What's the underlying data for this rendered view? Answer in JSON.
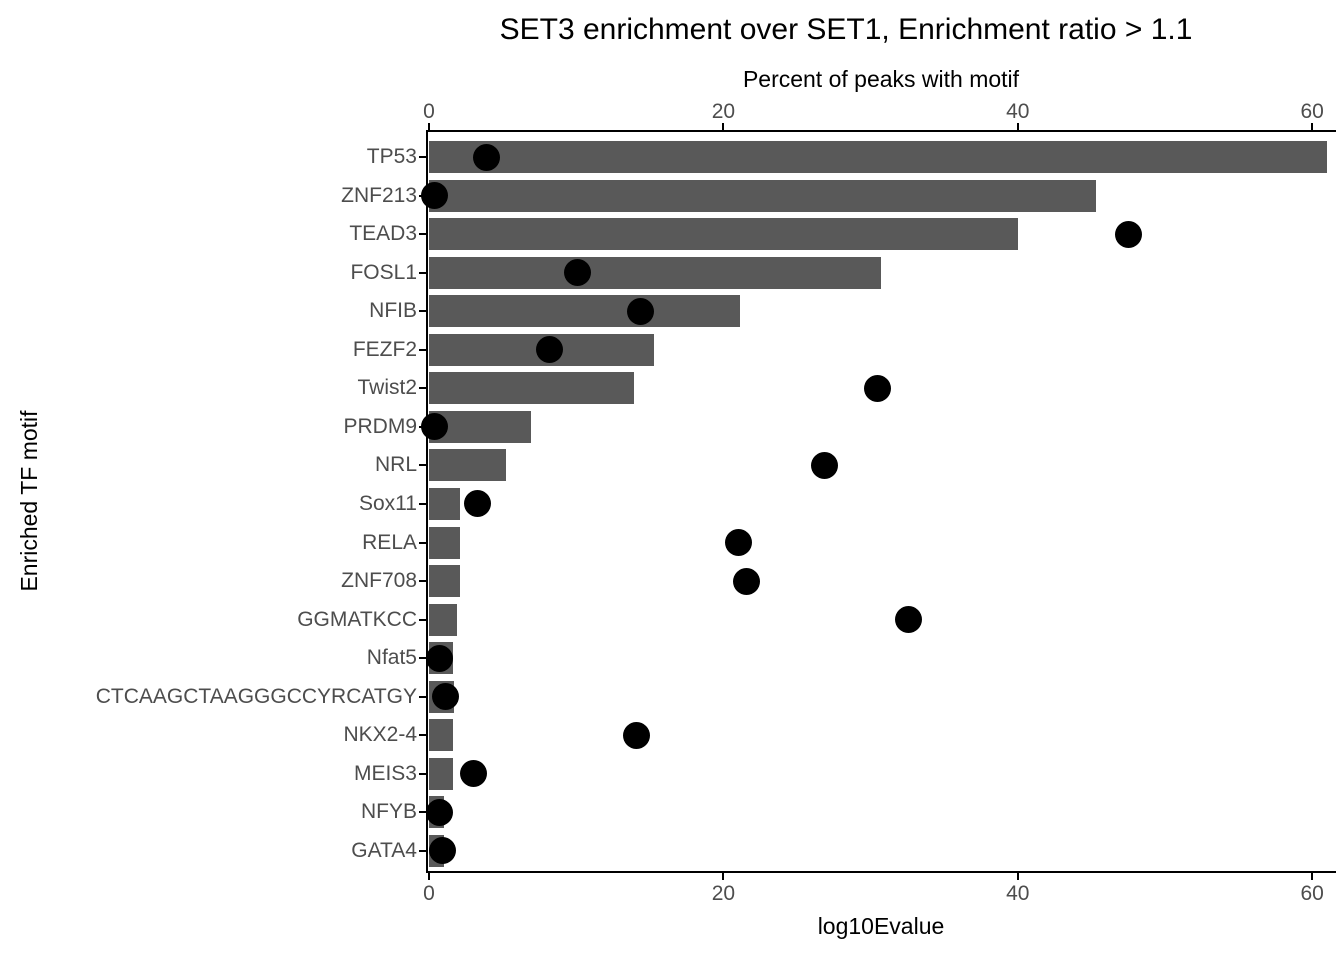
{
  "colors": {
    "bar": "#595959",
    "dot": "#000000",
    "axis_text": "#4d4d4d",
    "axis_line": "#000000",
    "background": "#ffffff"
  },
  "chart_data": {
    "type": "bar",
    "orientation": "horizontal",
    "title": "SET3 enrichment over SET1, Enrichment ratio > 1.1",
    "ylabel": "Enriched TF motif",
    "top_axis": {
      "label": "Percent of peaks with motif",
      "ticks": [
        "0",
        "20",
        "40",
        "60"
      ],
      "tick_values": [
        0,
        20,
        40,
        60
      ],
      "range": [
        0,
        61.7
      ]
    },
    "bottom_axis": {
      "label": "log10Evalue",
      "ticks": [
        "0",
        "20",
        "40",
        "60"
      ],
      "tick_values": [
        0,
        20,
        40,
        60
      ],
      "range": [
        0,
        61.7
      ]
    },
    "grid": false,
    "legend": "none",
    "categories": [
      "TP53",
      "ZNF213",
      "TEAD3",
      "FOSL1",
      "NFIB",
      "FEZF2",
      "Twist2",
      "PRDM9",
      "NRL",
      "Sox11",
      "RELA",
      "ZNF708",
      "GGMATKCC",
      "Nfat5",
      "CTCAAGCTAAGGGCCYRCATGY",
      "NKX2-4",
      "MEIS3",
      "NFYB",
      "GATA4"
    ],
    "series": [
      {
        "name": "Percent of peaks with motif",
        "mark": "bar",
        "values": [
          61.0,
          45.3,
          40.0,
          30.7,
          21.1,
          15.3,
          13.9,
          6.9,
          5.2,
          2.1,
          2.1,
          2.1,
          1.9,
          1.6,
          1.7,
          1.6,
          1.6,
          1.0,
          1.0
        ]
      },
      {
        "name": "log10Evalue",
        "mark": "point",
        "values": [
          3.9,
          0.4,
          47.5,
          10.1,
          14.4,
          8.2,
          30.5,
          0.4,
          26.9,
          3.3,
          21.0,
          21.6,
          32.6,
          0.7,
          1.1,
          14.1,
          3.0,
          0.7,
          0.9
        ]
      }
    ]
  }
}
